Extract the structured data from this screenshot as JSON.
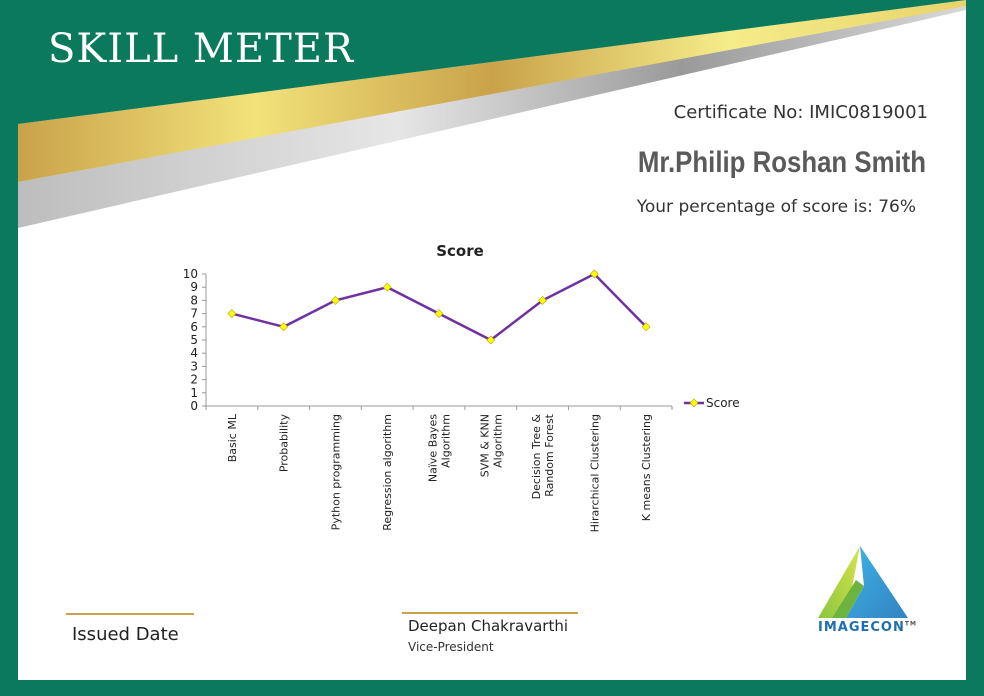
{
  "certificate": {
    "title": "SKILL METER",
    "certificate_no": "Certificate No: IMIC0819001",
    "recipient": "Mr.Philip Roshan Smith",
    "score_text": "Your percentage of score is: 76%",
    "issued_label": "Issued Date",
    "signer_name": "Deepan Chakravarthi",
    "signer_role": "Vice-President",
    "logo_text": "IMAGECON",
    "logo_tm": "TM"
  },
  "colors": {
    "border": "#0b7a5c",
    "gold": "#c9a24a",
    "line": "#7030a0",
    "marker": "#ffff00"
  },
  "chart_data": {
    "type": "line",
    "title": "Score",
    "categories": [
      "Basic ML",
      "Probability",
      "Python programming",
      "Regression algorithm",
      "Naïve Bayes Algorithm",
      "SVM & KNN Algorithm",
      "Decision Tree & Random Forest",
      "Hirarchical Clustering",
      "K means Clustering"
    ],
    "category_lines": [
      [
        "Basic ML"
      ],
      [
        "Probability"
      ],
      [
        "Python programming"
      ],
      [
        "Regression algorithm"
      ],
      [
        "Naïve Bayes",
        "Algorithm"
      ],
      [
        "SVM & KNN",
        "Algorithm"
      ],
      [
        "Decision Tree &",
        "Random Forest"
      ],
      [
        "Hirarchical Clustering"
      ],
      [
        "K means Clustering"
      ]
    ],
    "series": [
      {
        "name": "Score",
        "values": [
          7,
          6,
          8,
          9,
          7,
          5,
          8,
          10,
          6
        ]
      }
    ],
    "ylim": [
      0,
      10
    ],
    "yticks": [
      "0",
      "1",
      "2",
      "3",
      "4",
      "5",
      "6",
      "7",
      "8",
      "9",
      "10"
    ],
    "legend_position": "right",
    "grid": false
  }
}
